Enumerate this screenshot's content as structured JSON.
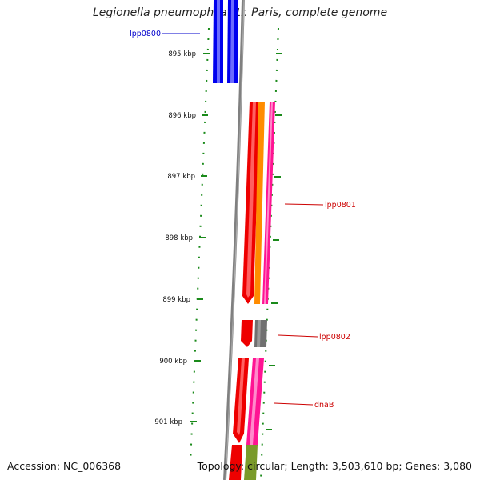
{
  "title": "Legionella pneumophila str. Paris, complete genome",
  "footer": {
    "accession": "Accession: NC_006368",
    "summary": "Topology: circular; Length: 3,503,610 bp; Genes: 3,080"
  },
  "ticks": [
    "895 kbp",
    "896 kbp",
    "897 kbp",
    "898 kbp",
    "899 kbp",
    "900 kbp",
    "901 kbp"
  ],
  "gene_labels": [
    {
      "text": "lpp0800",
      "color": "#0000cc"
    },
    {
      "text": "lpp0801",
      "color": "#cc0000"
    },
    {
      "text": "lpp0802",
      "color": "#cc0000"
    },
    {
      "text": "dnaB",
      "color": "#cc0000"
    }
  ],
  "colors": {
    "backbone": "#808080",
    "tick": "#1a8a1a",
    "blue_feature": "#0000ee",
    "red_feature": "#ee0000",
    "orange_feature": "#ff8c00",
    "magenta_feature": "#ff1493",
    "gray_feature": "#707070",
    "olive_feature": "#7a9a2a"
  }
}
